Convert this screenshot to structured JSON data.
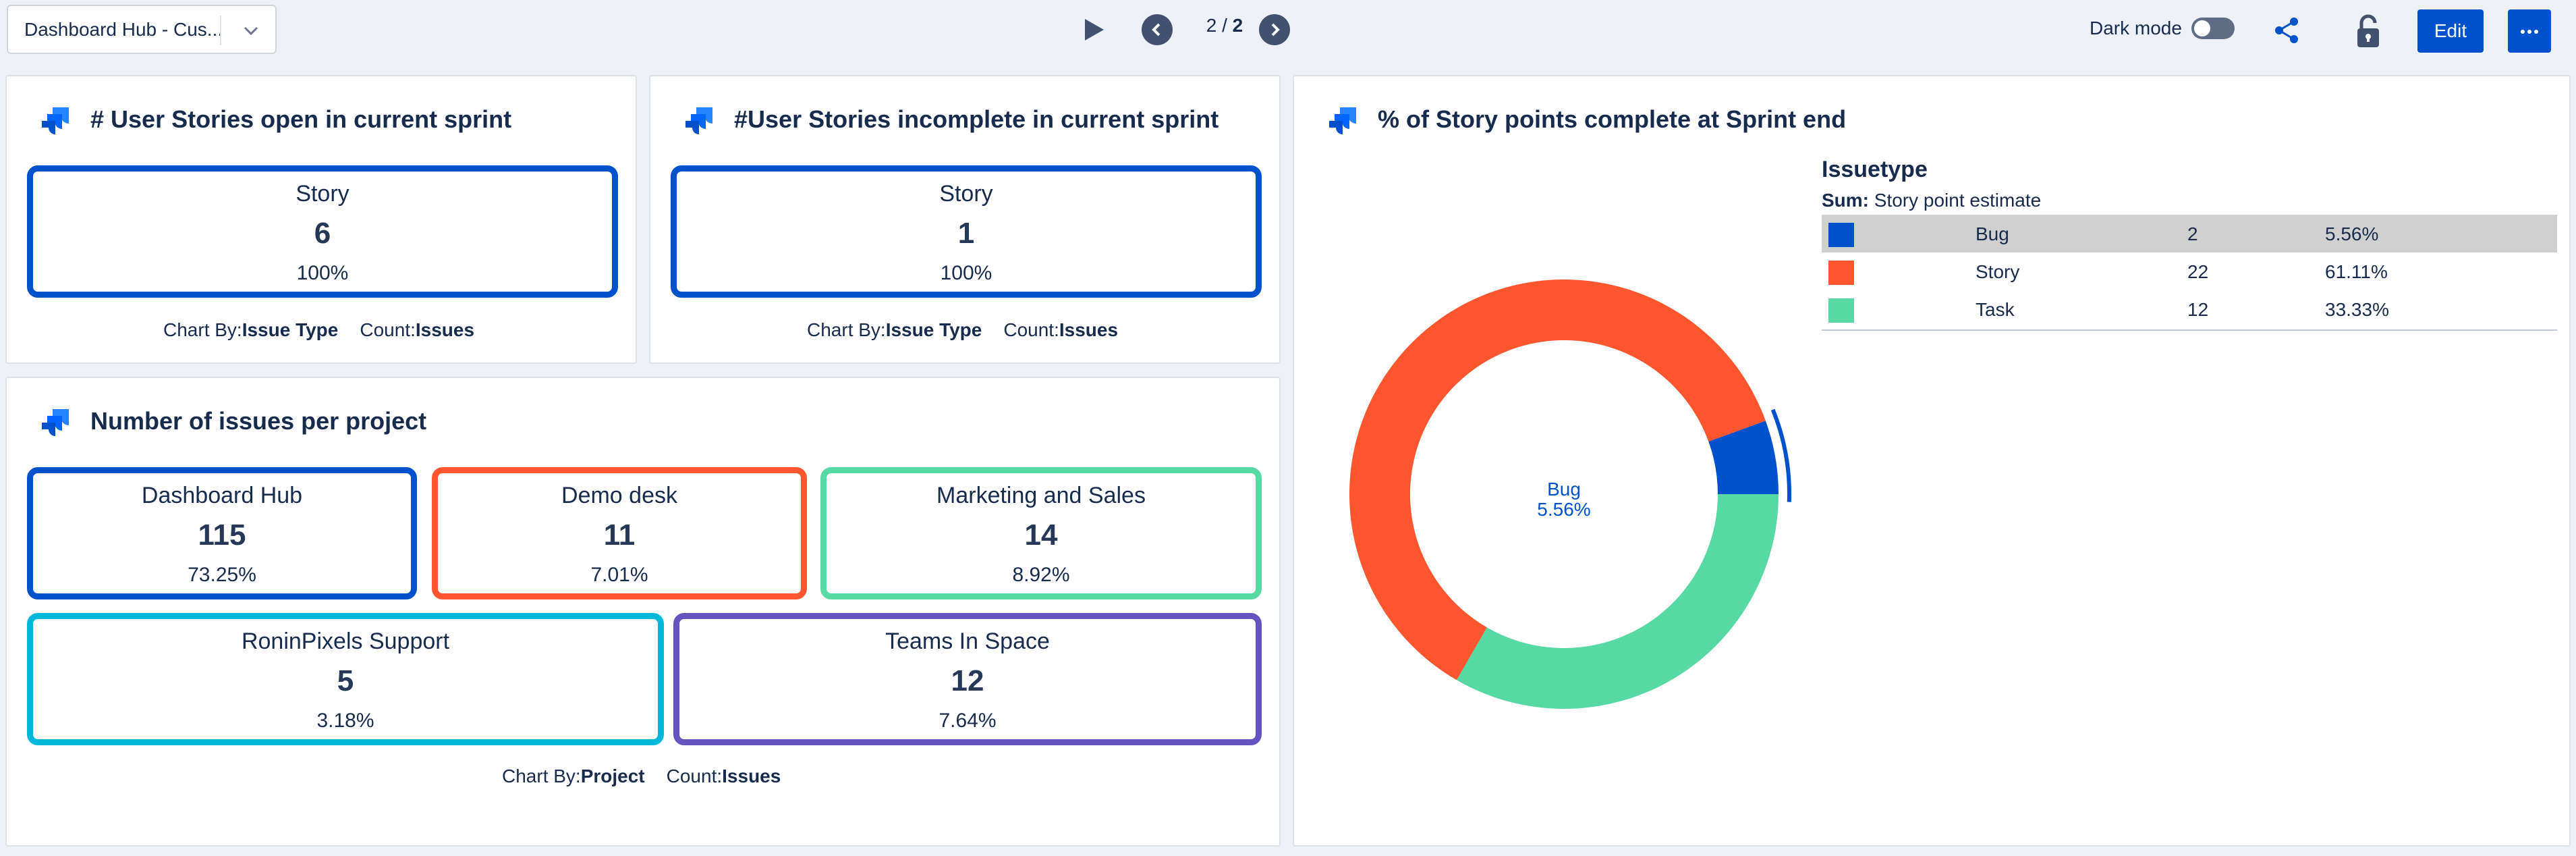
{
  "topbar": {
    "dashboard_name": "Dashboard Hub - Cus...",
    "page_current": "2",
    "page_sep": " / ",
    "page_total": "2",
    "dark_mode_label": "Dark mode",
    "edit_label": "Edit",
    "icons": [
      "chevron-down-icon",
      "play-icon",
      "chevron-left-icon",
      "chevron-right-icon",
      "share-icon",
      "unlock-icon",
      "more-icon"
    ]
  },
  "panels": {
    "open_stories": {
      "title": "# User Stories open in current sprint",
      "card": {
        "label": "Story",
        "value": "6",
        "percent": "100%"
      },
      "footer": {
        "chart_by_label": "Chart By:",
        "chart_by": "Issue Type",
        "count_label": "Count:",
        "count": "Issues"
      }
    },
    "incomplete_stories": {
      "title": "#User Stories incomplete in current sprint",
      "card": {
        "label": "Story",
        "value": "1",
        "percent": "100%"
      },
      "footer": {
        "chart_by_label": "Chart By:",
        "chart_by": "Issue Type",
        "count_label": "Count:",
        "count": "Issues"
      }
    },
    "issues_per_project": {
      "title": "Number of issues per project",
      "cards": [
        {
          "label": "Dashboard Hub",
          "value": "115",
          "percent": "73.25%",
          "color": "#0052cc"
        },
        {
          "label": "Demo desk",
          "value": "11",
          "percent": "7.01%",
          "color": "#ff5630"
        },
        {
          "label": "Marketing and Sales",
          "value": "14",
          "percent": "8.92%",
          "color": "#57d9a3"
        },
        {
          "label": "RoninPixels Support",
          "value": "5",
          "percent": "3.18%",
          "color": "#00b8d9"
        },
        {
          "label": "Teams In Space",
          "value": "12",
          "percent": "7.64%",
          "color": "#6554c0"
        }
      ],
      "footer": {
        "chart_by_label": "Chart By:",
        "chart_by": "Project",
        "count_label": "Count:",
        "count": "Issues"
      }
    },
    "story_points": {
      "title": "% of Story points complete at Sprint end"
    }
  },
  "chart_data": {
    "type": "pie",
    "title": "% of Story points complete at Sprint end",
    "legend_title": "Issuetype",
    "legend_subtitle_label": "Sum:",
    "legend_subtitle": "Story point estimate",
    "categories": [
      "Bug",
      "Story",
      "Task"
    ],
    "values": [
      2,
      22,
      12
    ],
    "percents": [
      "5.56%",
      "61.11%",
      "33.33%"
    ],
    "colors": [
      "#0052cc",
      "#ff5630",
      "#57d9a3"
    ],
    "highlighted": "Bug",
    "center_label": "Bug",
    "center_value": "5.56%",
    "legend_placement": "right"
  },
  "colors": {
    "accent": "#0052cc",
    "open_card_border": "#0052cc"
  }
}
